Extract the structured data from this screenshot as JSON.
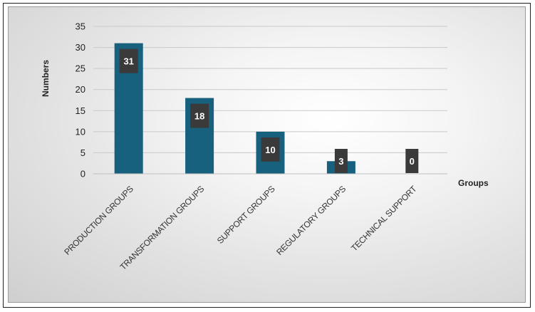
{
  "chart_data": {
    "type": "bar",
    "categories": [
      "PRODUCTION GROUPS",
      "TRANSFORMATION GROUPS",
      "SUPPORT GROUPS",
      "REGULATORY GROUPS",
      "TECHNICAL SUPPORT"
    ],
    "values": [
      31,
      18,
      10,
      3,
      0
    ],
    "data_labels": [
      "31",
      "18",
      "10",
      "3",
      "0"
    ],
    "title": "",
    "xlabel": "Groups",
    "ylabel": "Numbers",
    "ylim": [
      0,
      35
    ],
    "yticks": [
      "0",
      "5",
      "10",
      "15",
      "20",
      "25",
      "30",
      "35"
    ],
    "grid": true,
    "bar_color": "#17607e",
    "label_box_color": "#3a3a3a"
  }
}
